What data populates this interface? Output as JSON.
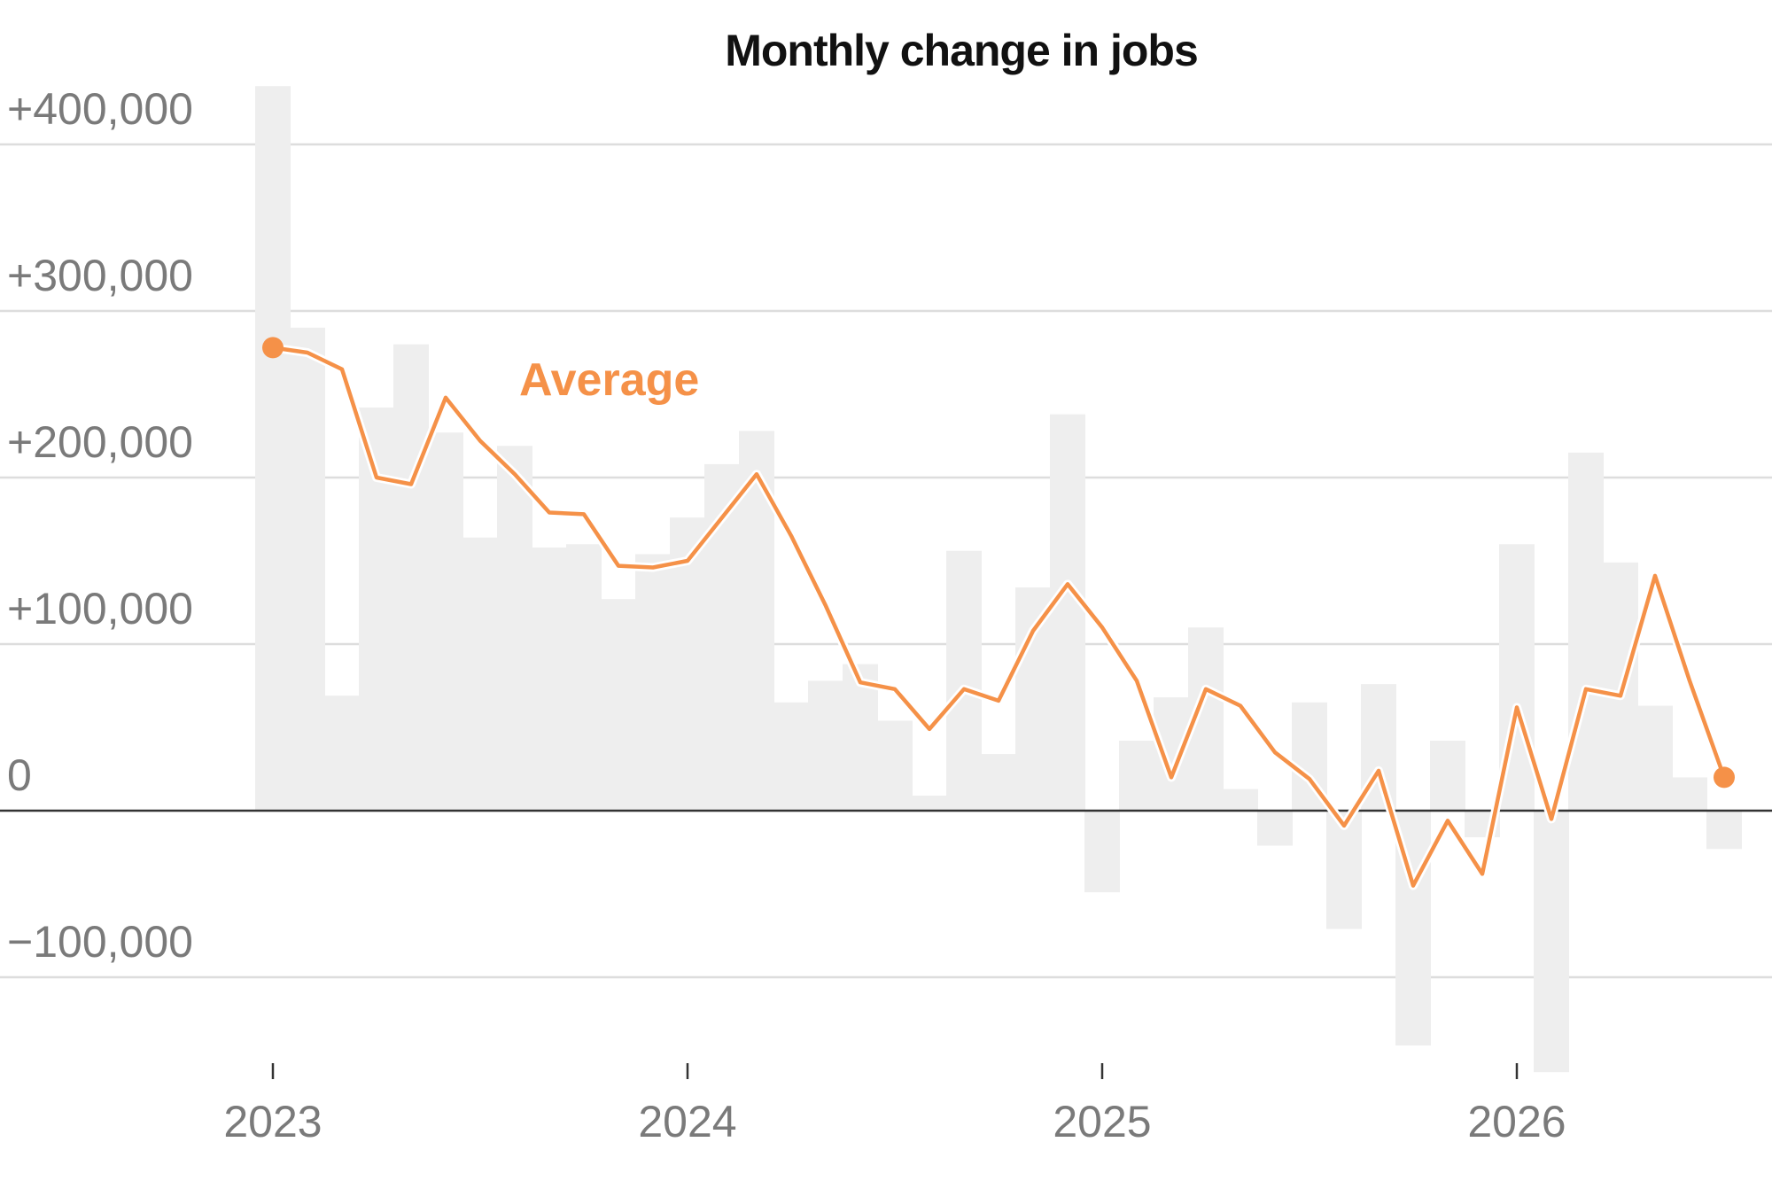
{
  "chart_data": {
    "type": "bar",
    "title": "Monthly change in jobs",
    "annotation": "Average",
    "xlabel": "",
    "ylabel": "",
    "ylim": [
      -165000,
      435000
    ],
    "y_ticks": [
      400000,
      300000,
      200000,
      100000,
      0,
      -100000
    ],
    "y_tick_labels": [
      "+400,000",
      "+300,000",
      "+200,000",
      "+100,000",
      "0",
      "−100,000"
    ],
    "x_ticks": [
      {
        "label": "2023",
        "month_index": 0
      },
      {
        "label": "2024",
        "month_index": 12
      },
      {
        "label": "2025",
        "month_index": 24
      },
      {
        "label": "2026",
        "month_index": 36
      }
    ],
    "grid": true,
    "months": [
      "Jan 2023",
      "Feb 2023",
      "Mar 2023",
      "Apr 2023",
      "May 2023",
      "Jun 2023",
      "Jul 2023",
      "Aug 2023",
      "Sep 2023",
      "Oct 2023",
      "Nov 2023",
      "Dec 2023",
      "Jan 2024",
      "Feb 2024",
      "Mar 2024",
      "Apr 2024",
      "May 2024",
      "Jun 2024",
      "Jul 2024",
      "Aug 2024",
      "Sep 2024",
      "Oct 2024",
      "Nov 2024",
      "Dec 2024",
      "Jan 2025",
      "Feb 2025",
      "Mar 2025",
      "Apr 2025",
      "May 2025",
      "Jun 2025",
      "Jul 2025",
      "Aug 2025",
      "Sep 2025",
      "Oct 2025",
      "Nov 2025",
      "Dec 2025",
      "Jan 2026",
      "Feb 2026",
      "Mar 2026",
      "Apr 2026",
      "May 2026",
      "Jun 2026",
      "Jul 2026"
    ],
    "series": [
      {
        "kind": "bar",
        "values": [
          435000,
          290000,
          69000,
          242000,
          280000,
          227000,
          164000,
          219000,
          158000,
          160000,
          127000,
          154000,
          176000,
          208000,
          228000,
          65000,
          78000,
          88000,
          54000,
          9000,
          156000,
          34000,
          134000,
          238000,
          -49000,
          42000,
          68000,
          110000,
          13000,
          -21000,
          65000,
          -71000,
          76000,
          -141000,
          42000,
          -16000,
          160000,
          -157000,
          215000,
          149000,
          63000,
          20000,
          -23000
        ]
      },
      {
        "kind": "line",
        "values": [
          278000,
          275000,
          265000,
          200000,
          196000,
          248000,
          222000,
          202000,
          179000,
          178000,
          147000,
          146000,
          150000,
          176000,
          202000,
          165000,
          123000,
          77000,
          73000,
          49000,
          73000,
          66000,
          108000,
          136000,
          110000,
          78000,
          20000,
          73000,
          63000,
          35000,
          19000,
          -9000,
          24000,
          -45000,
          -6000,
          -38000,
          62000,
          -5000,
          73000,
          69000,
          141000,
          78000,
          20000
        ]
      }
    ],
    "colors": {
      "bar": "#eeeeee",
      "line": "#f59148",
      "zero_line": "#333333",
      "grid": "#dddddd"
    }
  }
}
